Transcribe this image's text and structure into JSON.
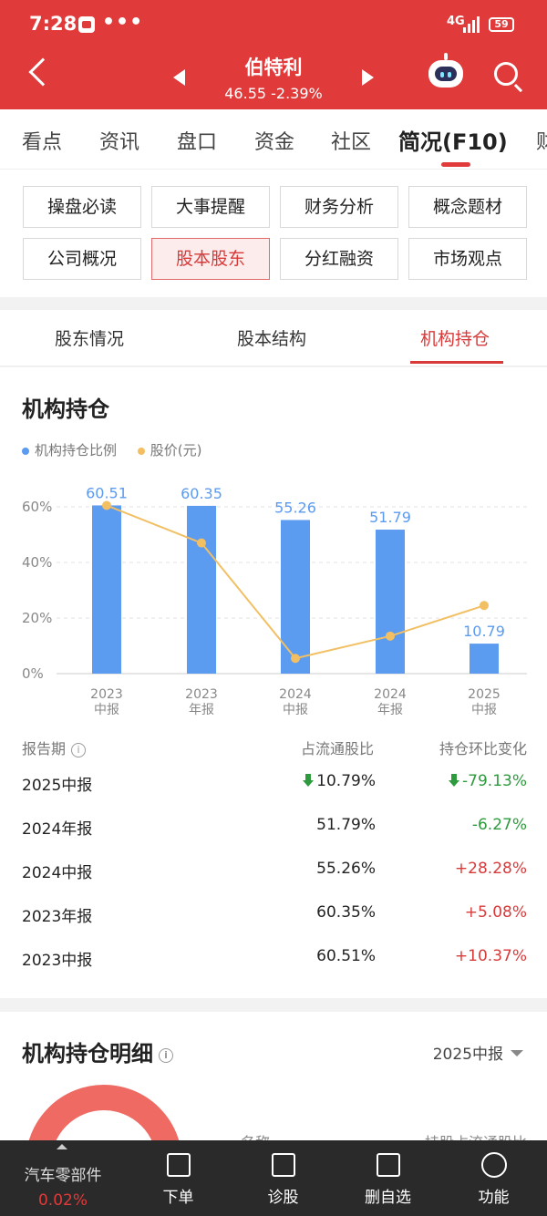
{
  "status_bar": {
    "time": "7:28",
    "dots": "•••",
    "network": "4G",
    "battery": "59"
  },
  "header": {
    "stock_name": "伯特利",
    "price_line": "46.55  -2.39%"
  },
  "main_tabs": [
    "看点",
    "资讯",
    "盘口",
    "资金",
    "社区",
    "简况(F10)",
    "财"
  ],
  "main_tab_active": "简况(F10)",
  "quick_buttons": [
    "操盘必读",
    "大事提醒",
    "财务分析",
    "概念题材",
    "公司概况",
    "股本股东",
    "分红融资",
    "市场观点"
  ],
  "quick_active": "股本股东",
  "sub_tabs": [
    "股东情况",
    "股本结构",
    "机构持仓"
  ],
  "sub_tab_active": "机构持仓",
  "section": {
    "title": "机构持仓",
    "legend": [
      "机构持仓比例",
      "股价(元)"
    ],
    "colors": {
      "bar": "#5b9bf0",
      "line": "#f2bf63",
      "up": "#d83a3a",
      "down": "#2e9a3e"
    }
  },
  "chart_data": {
    "type": "bar",
    "categories": [
      "2023 中报",
      "2023 年报",
      "2024 中报",
      "2024 年报",
      "2025 中报"
    ],
    "tick_labels": [
      [
        "2023",
        "中报"
      ],
      [
        "2023",
        "年报"
      ],
      [
        "2024",
        "中报"
      ],
      [
        "2024",
        "年报"
      ],
      [
        "2025",
        "中报"
      ]
    ],
    "y_ticks": [
      "60%",
      "40%",
      "20%",
      "0%"
    ],
    "ylim": [
      0,
      60
    ],
    "grid": true,
    "legend_position": "top-left",
    "series": [
      {
        "name": "机构持仓比例",
        "type": "bar",
        "values": [
          60.51,
          60.35,
          55.26,
          51.79,
          10.79
        ],
        "labels": [
          "60.51",
          "60.35",
          "55.26",
          "51.79",
          "10.79"
        ]
      },
      {
        "name": "股价(元)",
        "type": "line",
        "values": [
          60.5,
          47,
          5.5,
          13.5,
          24.5
        ]
      }
    ]
  },
  "table": {
    "headers": [
      "报告期",
      "占流通股比",
      "持仓环比变化"
    ],
    "rows": [
      {
        "period": "2025中报",
        "ratio": "10.79%",
        "change": "-79.13%",
        "dir": "down",
        "arrow": true
      },
      {
        "period": "2024年报",
        "ratio": "51.79%",
        "change": "-6.27%",
        "dir": "down",
        "arrow": false
      },
      {
        "period": "2024中报",
        "ratio": "55.26%",
        "change": "+28.28%",
        "dir": "up",
        "arrow": false
      },
      {
        "period": "2023年报",
        "ratio": "60.35%",
        "change": "+5.08%",
        "dir": "up",
        "arrow": false
      },
      {
        "period": "2023中报",
        "ratio": "60.51%",
        "change": "+10.37%",
        "dir": "up",
        "arrow": false
      }
    ]
  },
  "detail": {
    "title": "机构持仓明细",
    "period": "2025中报",
    "col_name": "名称",
    "col_ratio": "持股占流通股比"
  },
  "bottom_bar": {
    "sector": "汽车零部件",
    "sector_change": "0.02%",
    "items": [
      "下单",
      "诊股",
      "删自选",
      "功能"
    ]
  }
}
